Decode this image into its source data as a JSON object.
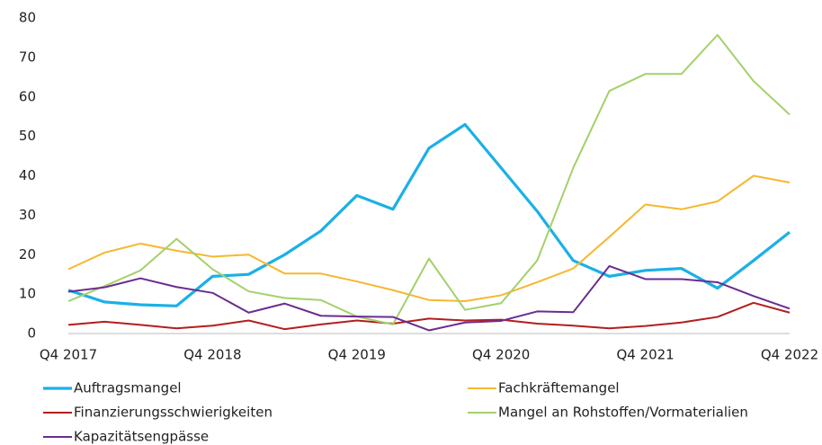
{
  "chart_data": {
    "type": "line",
    "categories": [
      "Q4 2017",
      null,
      null,
      null,
      "Q4 2018",
      null,
      null,
      null,
      "Q4 2019",
      null,
      null,
      null,
      "Q4 2020",
      null,
      null,
      null,
      "Q4 2021",
      null,
      null,
      null,
      "Q4 2022"
    ],
    "series": [
      {
        "name": "Auftragsmangel",
        "color": "#1ab0e6",
        "values": [
          11,
          8,
          7.3,
          7,
          14.5,
          15,
          20,
          26,
          35,
          31.5,
          47,
          53,
          42,
          31,
          18.5,
          14.5,
          16,
          16.5,
          11.5,
          18.5,
          25.7
        ]
      },
      {
        "name": "Fachkräftemangel",
        "color": "#f5b82e",
        "values": [
          16.3,
          20.5,
          22.8,
          21,
          19.5,
          20,
          15.2,
          15.2,
          13.2,
          11,
          8.5,
          8.2,
          9.7,
          13,
          16.5,
          24.5,
          32.7,
          31.5,
          33.5,
          40,
          38.3
        ]
      },
      {
        "name": "Finanzierungsschwierigkeiten",
        "color": "#b41e1e",
        "values": [
          2.2,
          3,
          2.2,
          1.3,
          2,
          3.3,
          1.1,
          2.3,
          3.3,
          2.5,
          3.8,
          3.3,
          3.5,
          2.5,
          2,
          1.3,
          1.9,
          2.8,
          4.2,
          7.8,
          5.3
        ]
      },
      {
        "name": "Mangel an Rohstoffen/Vormaterialien",
        "color": "#a3d16a",
        "values": [
          8.2,
          12,
          16,
          24,
          16.3,
          10.7,
          9,
          8.5,
          4.3,
          2.3,
          19,
          6,
          7.7,
          18.5,
          42,
          61.5,
          65.8,
          65.8,
          75.7,
          64,
          55.5
        ]
      },
      {
        "name": "Kapazitätsengpässe",
        "color": "#6a2d8f",
        "values": [
          10.6,
          11.7,
          14,
          11.8,
          10.3,
          5.3,
          7.6,
          4.5,
          4.3,
          4.2,
          0.8,
          2.8,
          3.2,
          5.6,
          5.4,
          17.1,
          13.8,
          13.8,
          13,
          9.5,
          6.3
        ]
      }
    ],
    "ylim": [
      0,
      80
    ],
    "yticks": [
      0,
      10,
      20,
      30,
      40,
      50,
      60,
      70,
      80
    ]
  }
}
